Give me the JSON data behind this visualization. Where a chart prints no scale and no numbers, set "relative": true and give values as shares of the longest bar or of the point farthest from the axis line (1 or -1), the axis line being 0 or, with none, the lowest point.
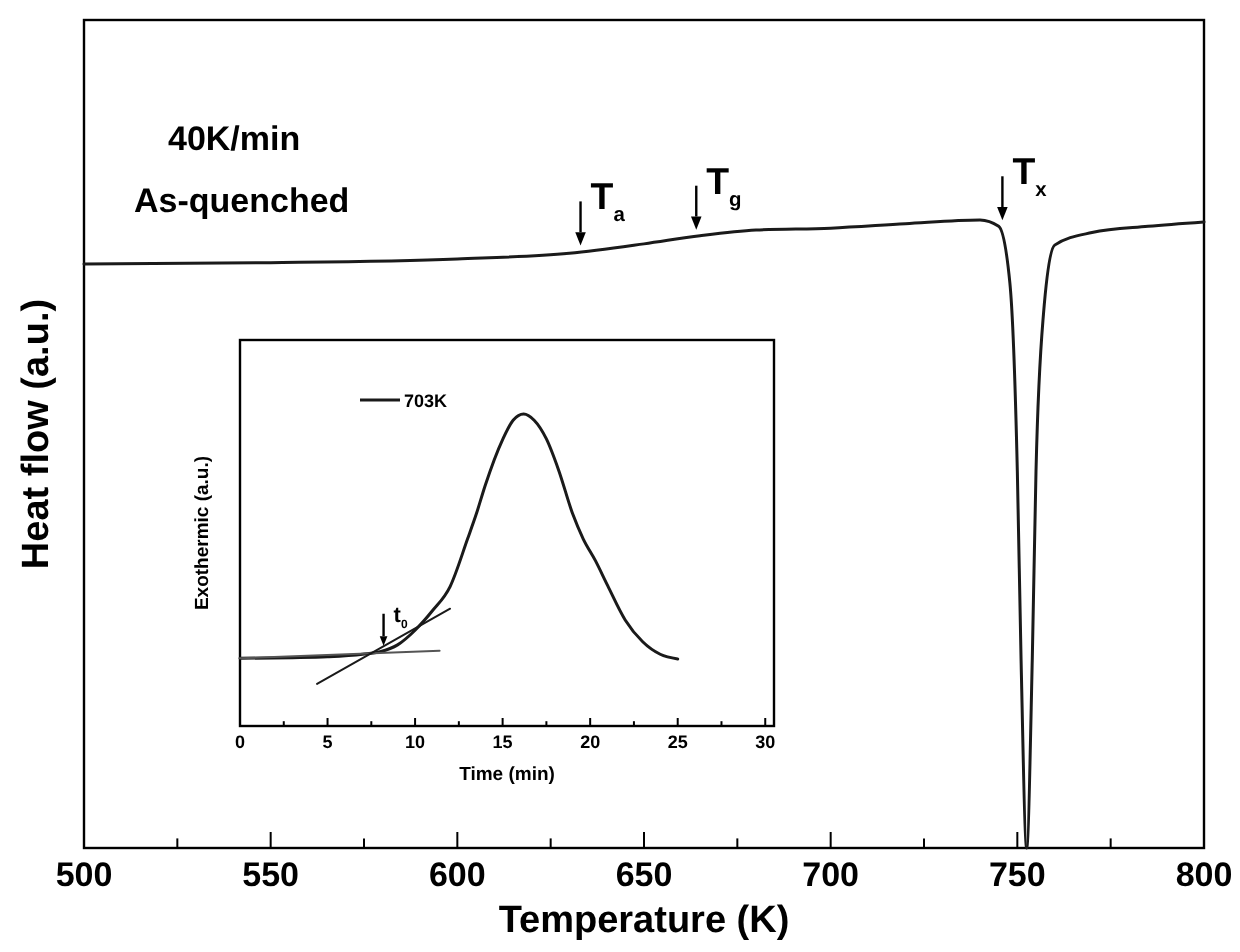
{
  "chart_data": [
    {
      "type": "line",
      "xlabel": "Temperature (K)",
      "ylabel": "Heat flow (a.u.)",
      "relative": true,
      "xlim": [
        500,
        800
      ],
      "xticks": [
        500,
        {
          "value": 525,
          "label": null
        },
        550,
        {
          "value": 575,
          "label": null
        },
        600,
        {
          "value": 625,
          "label": null
        },
        650,
        {
          "value": 675,
          "label": null
        },
        700,
        {
          "value": 725,
          "label": null
        },
        750,
        {
          "value": 775,
          "label": null
        },
        800
      ],
      "x": [
        500,
        550,
        600,
        630,
        650,
        665,
        680,
        700,
        720,
        740,
        745,
        748,
        750,
        751,
        752.5,
        754,
        755,
        757,
        760,
        770,
        785,
        800
      ],
      "series": [
        {
          "color": "#1a1a1a",
          "values": [
            0.93,
            0.932,
            0.938,
            0.947,
            0.962,
            0.975,
            0.984,
            0.987,
            0.994,
            1.0,
            0.99,
            0.9,
            0.6,
            0.3,
            0.0,
            0.3,
            0.6,
            0.85,
            0.96,
            0.98,
            0.99,
            0.997
          ]
        }
      ],
      "annotations": [
        "40K/min",
        "As-quenched",
        {
          "text": "T$_{a}$",
          "x": 633,
          "y": 0.95
        },
        {
          "text": "T$_{g}$",
          "x": 664,
          "y": 0.975
        },
        {
          "text": "T$_{x}$",
          "x": 746,
          "y": 0.99
        }
      ],
      "grid": false,
      "legend": false,
      "marker": "none",
      "line_style": "solid"
    },
    {
      "type": "line",
      "xlabel": "Time (min)",
      "ylabel": "Exothermic (a.u.)",
      "relative": true,
      "xlim": [
        0,
        30.5
      ],
      "xticks": [
        0,
        {
          "value": 2.5,
          "label": null
        },
        5,
        {
          "value": 7.5,
          "label": null
        },
        10,
        {
          "value": 12.5,
          "label": null
        },
        15,
        {
          "value": 17.5,
          "label": null
        },
        20,
        {
          "value": 22.5,
          "label": null
        },
        25,
        {
          "value": 27.5,
          "label": null
        },
        30
      ],
      "series": [
        {
          "name": "703K",
          "color": "#1a1a1a",
          "x": [
            0,
            3,
            5,
            7,
            8,
            9,
            10,
            11,
            12,
            13,
            13.5,
            14,
            15,
            15.6,
            16.2,
            16.8,
            17.5,
            18.2,
            19,
            19.6,
            20.3,
            21,
            22,
            23,
            24,
            25
          ],
          "values": [
            0.217,
            0.219,
            0.222,
            0.23,
            0.238,
            0.26,
            0.307,
            0.37,
            0.447,
            0.6,
            0.68,
            0.77,
            0.918,
            0.98,
            1.0,
            0.98,
            0.92,
            0.82,
            0.68,
            0.6,
            0.53,
            0.45,
            0.34,
            0.27,
            0.23,
            0.215
          ]
        },
        {
          "type": "line",
          "color": "#555555",
          "x": [
            0,
            11.4
          ],
          "values": [
            0.217,
            0.241
          ]
        },
        {
          "type": "line",
          "color": "#1a1a1a",
          "x": [
            4.4,
            12
          ],
          "values": [
            0.135,
            0.376
          ]
        }
      ],
      "annotations": [
        {
          "text": "t$_{0}$",
          "x": 8.2,
          "y": 0.238
        }
      ],
      "grid": false,
      "legend": "top left",
      "marker": "none",
      "line_style": "solid"
    }
  ]
}
